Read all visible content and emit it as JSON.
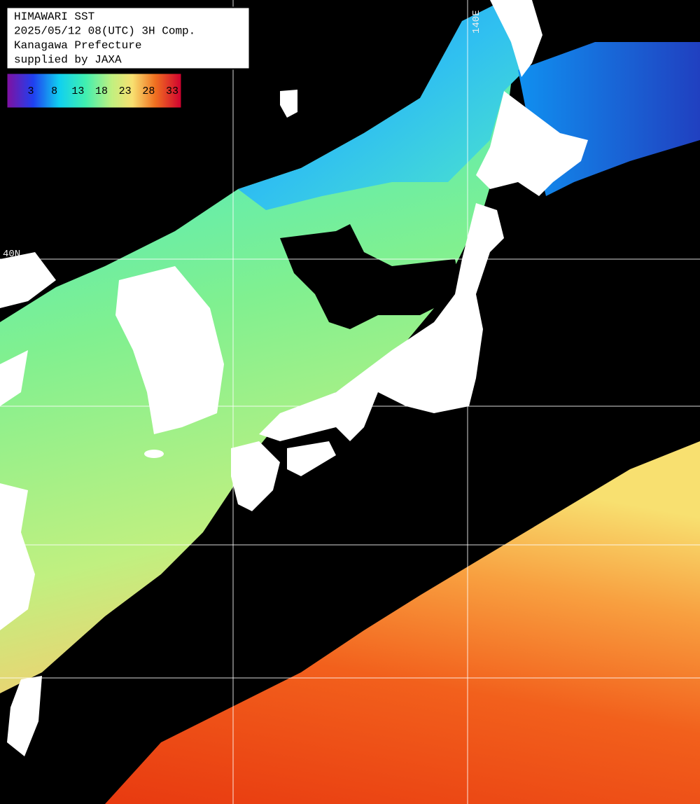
{
  "header": {
    "lines": [
      "HIMAWARI SST",
      "2025/05/12 08(UTC) 3H Comp.",
      "Kanagawa Prefecture",
      "supplied by JAXA"
    ]
  },
  "colorbar": {
    "labels": [
      3,
      8,
      13,
      18,
      23,
      28,
      33
    ]
  },
  "grid_labels": {
    "latitude": "40N",
    "longitude": "140E"
  }
}
